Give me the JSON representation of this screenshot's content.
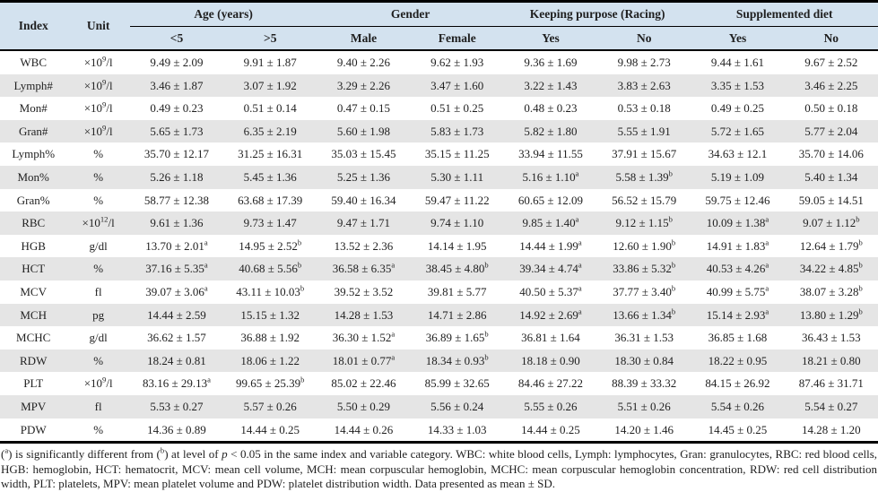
{
  "colors": {
    "header_bg": "#d3e2ef",
    "stripe_bg": "#e5e5e5",
    "border": "#000000",
    "text": "#1f1f1f"
  },
  "table": {
    "columns": {
      "index": "Index",
      "unit": "Unit"
    },
    "groups": [
      {
        "label": "Age (years)",
        "cols": [
          "<5",
          ">5"
        ]
      },
      {
        "label": "Gender",
        "cols": [
          "Male",
          "Female"
        ]
      },
      {
        "label": "Keeping purpose (Racing)",
        "cols": [
          "Yes",
          "No"
        ]
      },
      {
        "label": "Supplemented diet",
        "cols": [
          "Yes",
          "No"
        ]
      }
    ],
    "rows": [
      {
        "index": "WBC",
        "unit": "×10{9}/l",
        "values": [
          "9.49 ± 2.09",
          "9.91 ± 1.87",
          "9.40 ± 2.26",
          "9.62 ± 1.93",
          "9.36 ± 1.69",
          "9.98 ± 2.73",
          "9.44 ± 1.61",
          "9.67 ± 2.52"
        ]
      },
      {
        "index": "Lymph#",
        "unit": "×10{9}/l",
        "values": [
          "3.46 ± 1.87",
          "3.07 ± 1.92",
          "3.29 ± 2.26",
          "3.47 ± 1.60",
          "3.22 ± 1.43",
          "3.83 ± 2.63",
          "3.35 ± 1.53",
          "3.46 ± 2.25"
        ]
      },
      {
        "index": "Mon#",
        "unit": "×10{9}/l",
        "values": [
          "0.49 ± 0.23",
          "0.51 ± 0.14",
          "0.47 ± 0.15",
          "0.51 ± 0.25",
          "0.48 ± 0.23",
          "0.53 ± 0.18",
          "0.49 ± 0.25",
          "0.50 ± 0.18"
        ]
      },
      {
        "index": "Gran#",
        "unit": "×10{9}/l",
        "values": [
          "5.65 ± 1.73",
          "6.35 ± 2.19",
          "5.60 ± 1.98",
          "5.83 ± 1.73",
          "5.82 ± 1.80",
          "5.55 ± 1.91",
          "5.72 ± 1.65",
          "5.77 ± 2.04"
        ]
      },
      {
        "index": "Lymph%",
        "unit": "%",
        "values": [
          "35.70 ± 12.17",
          "31.25 ± 16.31",
          "35.03 ± 15.45",
          "35.15 ± 11.25",
          "33.94 ± 11.55",
          "37.91 ± 15.67",
          "34.63 ± 12.1",
          "35.70 ± 14.06"
        ]
      },
      {
        "index": "Mon%",
        "unit": "%",
        "values": [
          "5.26 ± 1.18",
          "5.45 ± 1.36",
          "5.25 ± 1.36",
          "5.30 ± 1.11",
          "5.16 ± 1.10{a}",
          "5.58 ± 1.39{b}",
          "5.19 ± 1.09",
          "5.40 ± 1.34"
        ]
      },
      {
        "index": "Gran%",
        "unit": "%",
        "values": [
          "58.77 ± 12.38",
          "63.68 ± 17.39",
          "59.40 ± 16.34",
          "59.47 ± 11.22",
          "60.65 ± 12.09",
          "56.52 ± 15.79",
          "59.75 ± 12.46",
          "59.05 ± 14.51"
        ]
      },
      {
        "index": "RBC",
        "unit": "×10{12}/l",
        "values": [
          "9.61 ± 1.36",
          "9.73 ± 1.47",
          "9.47 ± 1.71",
          "9.74 ± 1.10",
          "9.85 ± 1.40{a}",
          "9.12 ± 1.15{b}",
          "10.09 ± 1.38{a}",
          "9.07 ± 1.12{b}"
        ]
      },
      {
        "index": "HGB",
        "unit": "g/dl",
        "values": [
          "13.70 ± 2.01{a}",
          "14.95 ± 2.52{b}",
          "13.52 ± 2.36",
          "14.14 ± 1.95",
          "14.44 ± 1.99{a}",
          "12.60 ± 1.90{b}",
          "14.91 ± 1.83{a}",
          "12.64 ± 1.79{b}"
        ]
      },
      {
        "index": "HCT",
        "unit": "%",
        "values": [
          "37.16 ± 5.35{a}",
          "40.68 ± 5.56{b}",
          "36.58 ± 6.35{a}",
          "38.45 ± 4.80{b}",
          "39.34 ± 4.74{a}",
          "33.86 ± 5.32{b}",
          "40.53 ± 4.26{a}",
          "34.22 ± 4.85{b}"
        ]
      },
      {
        "index": "MCV",
        "unit": "fl",
        "values": [
          "39.07 ± 3.06{a}",
          "43.11 ± 10.03{b}",
          "39.52 ± 3.52",
          "39.81 ± 5.77",
          "40.50 ± 5.37{a}",
          "37.77 ± 3.40{b}",
          "40.99 ± 5.75{a}",
          "38.07 ± 3.28{b}"
        ]
      },
      {
        "index": "MCH",
        "unit": "pg",
        "values": [
          "14.44 ± 2.59",
          "15.15 ± 1.32",
          "14.28 ± 1.53",
          "14.71 ± 2.86",
          "14.92 ± 2.69{a}",
          "13.66 ± 1.34{b}",
          "15.14 ± 2.93{a}",
          "13.80 ± 1.29{b}"
        ]
      },
      {
        "index": "MCHC",
        "unit": "g/dl",
        "values": [
          "36.62 ± 1.57",
          "36.88 ± 1.92",
          "36.30 ± 1.52{a}",
          "36.89 ± 1.65{b}",
          "36.81 ± 1.64",
          "36.31 ± 1.53",
          "36.85 ± 1.68",
          "36.43 ± 1.53"
        ]
      },
      {
        "index": "RDW",
        "unit": "%",
        "values": [
          "18.24 ± 0.81",
          "18.06 ± 1.22",
          "18.01 ± 0.77{a}",
          "18.34 ± 0.93{b}",
          "18.18 ± 0.90",
          "18.30 ± 0.84",
          "18.22 ± 0.95",
          "18.21 ± 0.80"
        ]
      },
      {
        "index": "PLT",
        "unit": "×10{9}/l",
        "values": [
          "83.16 ± 29.13{a}",
          "99.65 ± 25.39{b}",
          "85.02 ± 22.46",
          "85.99 ± 32.65",
          "84.46 ± 27.22",
          "88.39 ± 33.32",
          "84.15 ± 26.92",
          "87.46 ± 31.71"
        ]
      },
      {
        "index": "MPV",
        "unit": "fl",
        "values": [
          "5.53 ± 0.27",
          "5.57 ± 0.26",
          "5.50 ± 0.29",
          "5.56 ± 0.24",
          "5.55 ± 0.26",
          "5.51 ± 0.26",
          "5.54 ± 0.26",
          "5.54 ± 0.27"
        ]
      },
      {
        "index": "PDW",
        "unit": "%",
        "values": [
          "14.36 ± 0.89",
          "14.44 ± 0.25",
          "14.44 ± 0.26",
          "14.33 ± 1.03",
          "14.44 ± 0.25",
          "14.20 ± 1.46",
          "14.45 ± 0.25",
          "14.28 ± 1.20"
        ]
      }
    ]
  },
  "footnote": "({a}) is significantly different from ({b}) at level of [p] < 0.05 in the same index and variable category. WBC: white blood cells, Lymph: lymphocytes, Gran: granulocytes, RBC: red blood cells, HGB: hemoglobin, HCT: hematocrit, MCV: mean cell volume, MCH: mean corpuscular hemoglobin, MCHC: mean corpuscular hemoglobin concentration, RDW: red cell distribution width, PLT: platelets, MPV: mean platelet volume and PDW: platelet distribution width. Data presented as mean ± SD."
}
